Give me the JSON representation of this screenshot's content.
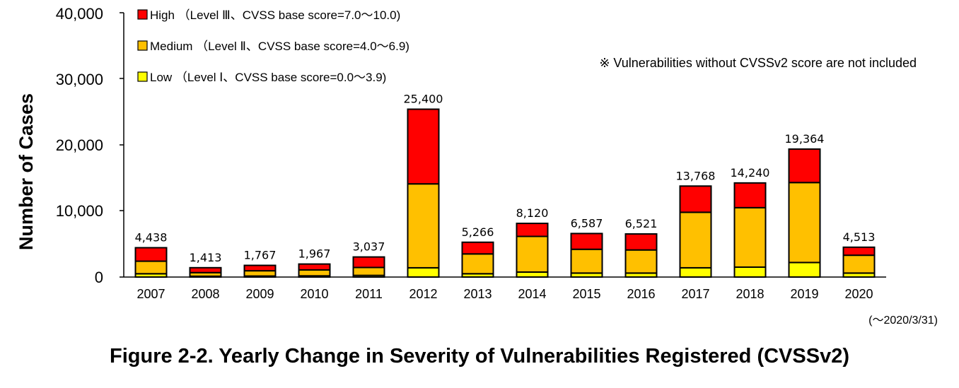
{
  "chart_data": {
    "type": "bar",
    "stacked": true,
    "categories": [
      "2007",
      "2008",
      "2009",
      "2010",
      "2011",
      "2012",
      "2013",
      "2014",
      "2015",
      "2016",
      "2017",
      "2018",
      "2019",
      "2020"
    ],
    "series": [
      {
        "name": "Low （Level Ⅰ、CVSS base score=0.0～3.9)",
        "color": "#FFFF00",
        "values": [
          500,
          120,
          150,
          180,
          250,
          1400,
          500,
          750,
          600,
          600,
          1400,
          1500,
          2200,
          600
        ]
      },
      {
        "name": "Medium （Level Ⅱ、CVSS base score=4.0～6.9)",
        "color": "#FFC000",
        "values": [
          1900,
          550,
          800,
          900,
          1200,
          12700,
          3000,
          5400,
          3600,
          3500,
          8400,
          9000,
          12100,
          2700
        ]
      },
      {
        "name": "High （Level Ⅲ、CVSS base score=7.0～10.0)",
        "color": "#FF0000",
        "values": [
          2038,
          743,
          817,
          887,
          1587,
          11300,
          1766,
          1970,
          2387,
          2421,
          3968,
          3740,
          5064,
          1213
        ]
      }
    ],
    "totals": [
      "4,438",
      "1,413",
      "1,767",
      "1,967",
      "3,037",
      "25,400",
      "5,266",
      "8,120",
      "6,587",
      "6,521",
      "13,768",
      "14,240",
      "19,364",
      "4,513"
    ],
    "ylim": [
      0,
      40000
    ],
    "yticks": [
      "0",
      "10,000",
      "20,000",
      "30,000",
      "40,000"
    ],
    "ylabel": "Number of Cases",
    "xlabel": "",
    "legend_position": "top-left",
    "grid": false,
    "note": "※ Vulnerabilities without CVSSv2 score are not included",
    "x_subnote": "(～2020/3/31)",
    "title": "Figure 2-2. Yearly Change in Severity of Vulnerabilities Registered (CVSSv2)"
  }
}
